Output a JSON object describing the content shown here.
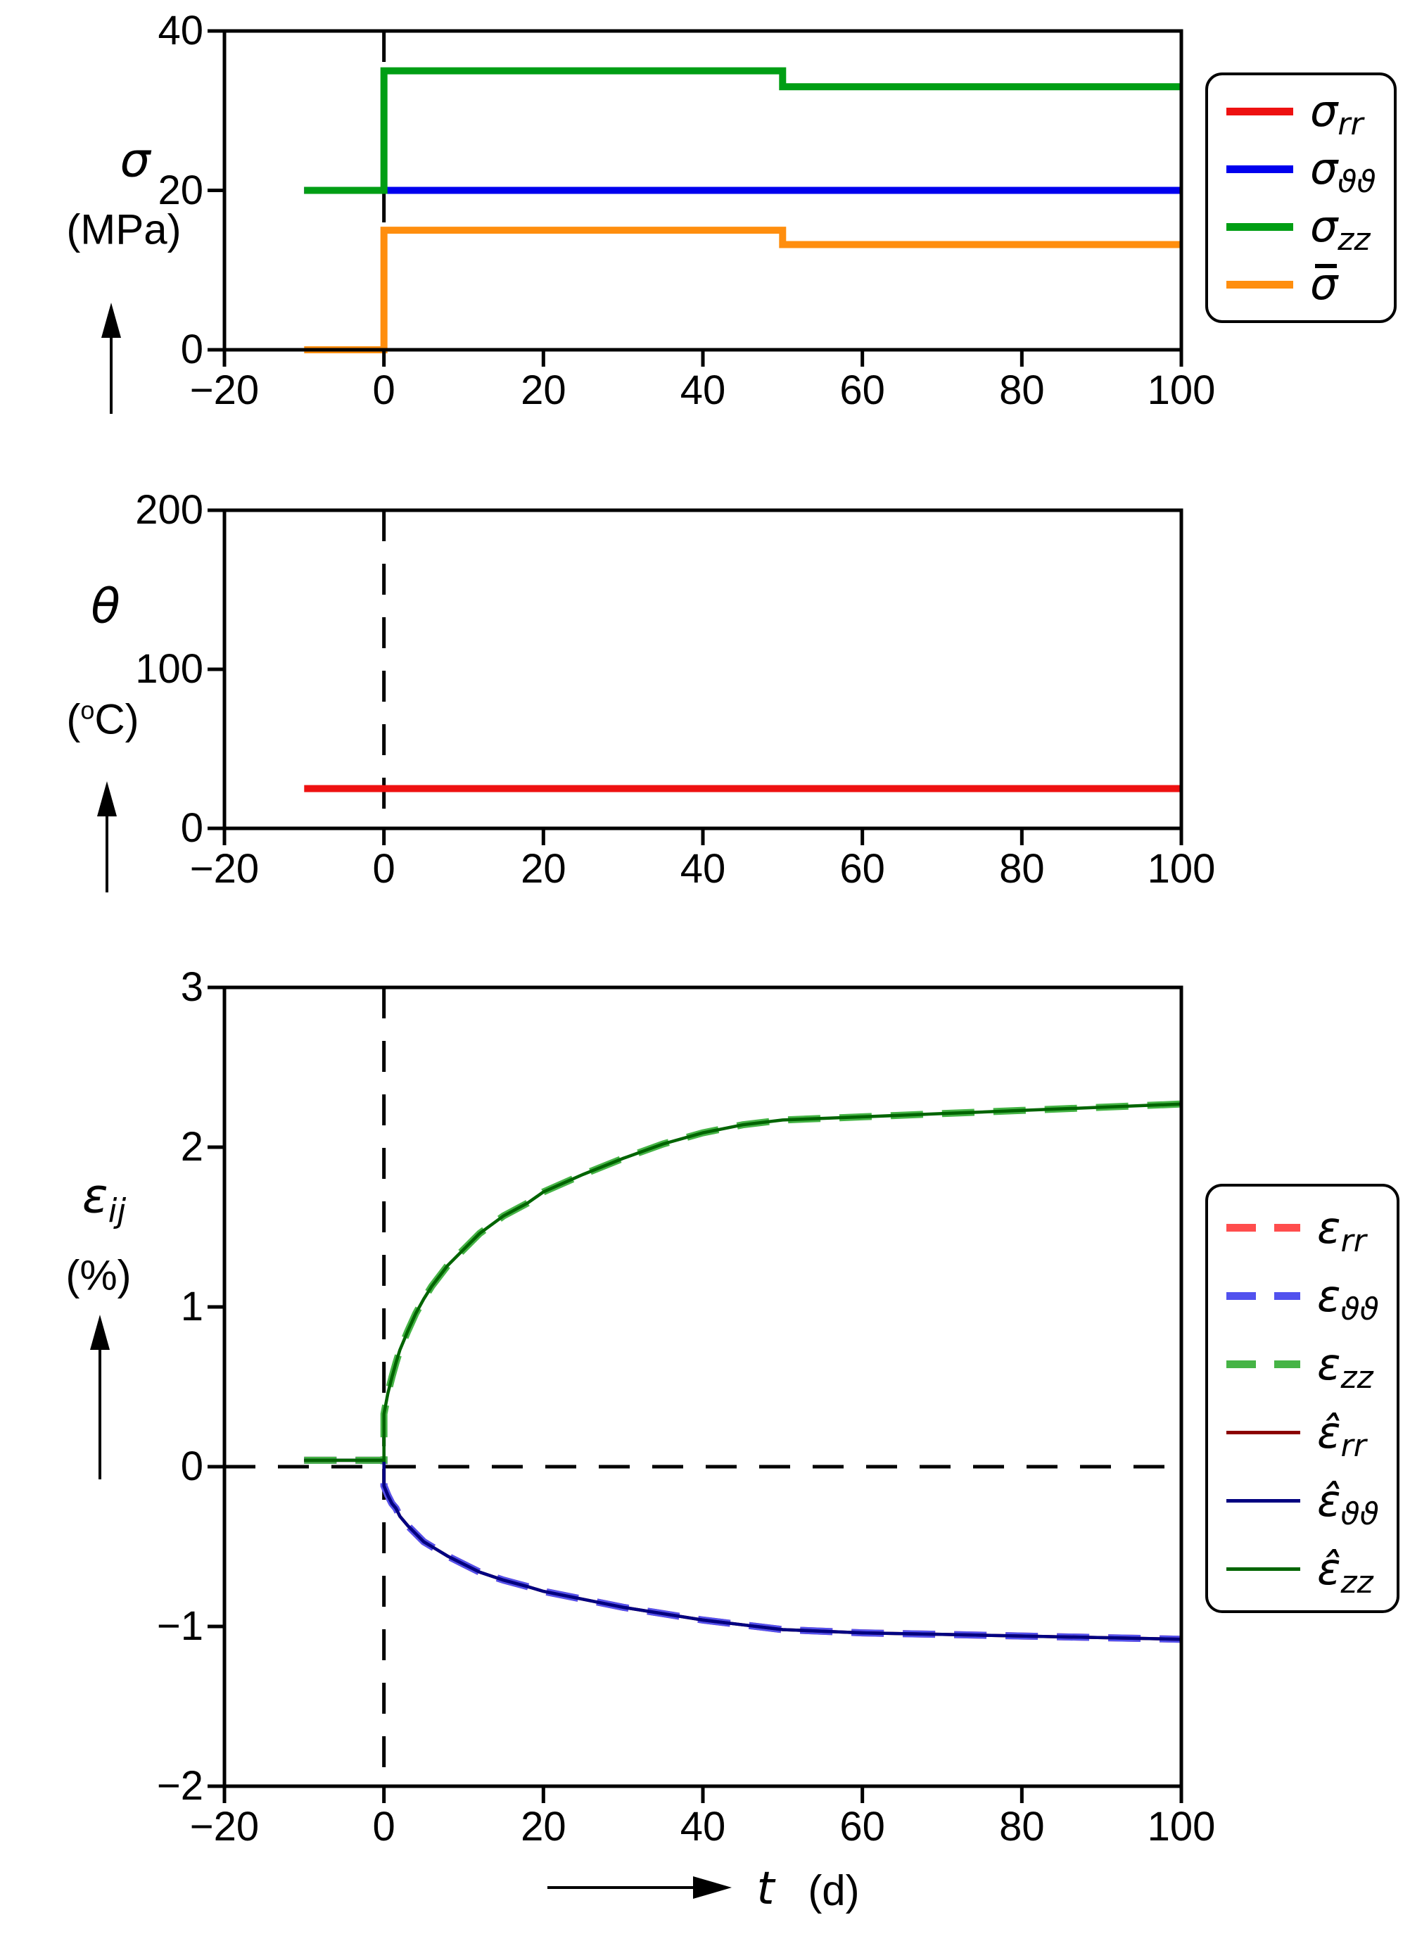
{
  "figure": {
    "background": "#ffffff"
  },
  "xaxis": {
    "ticks": [
      -20,
      0,
      20,
      40,
      60,
      80,
      100
    ],
    "label_symbol": "t",
    "label_unit": "(d)"
  },
  "panels": [
    {
      "id": "stress",
      "ylabel": {
        "symbol": "σ",
        "sub": "",
        "unit": "(MPa)"
      },
      "yticks": [
        0,
        20,
        40
      ],
      "ylim": [
        0,
        40
      ],
      "guides": {
        "vline_t": 0
      }
    },
    {
      "id": "temperature",
      "ylabel": {
        "symbol": "θ",
        "sub": "",
        "unit_pre": "(",
        "unit_sup": "o",
        "unit_post": "C)"
      },
      "yticks": [
        0,
        100,
        200
      ],
      "ylim": [
        0,
        200
      ],
      "guides": {
        "vline_t": 0
      }
    },
    {
      "id": "strain",
      "ylabel": {
        "symbol": "ε",
        "sub": "ij",
        "unit": "(%)"
      },
      "yticks": [
        -2,
        -1,
        0,
        1,
        2,
        3
      ],
      "ylim": [
        -2,
        3
      ],
      "guides": {
        "vline_t": 0,
        "hline_v": 0
      }
    }
  ],
  "legends": [
    {
      "id": "stress-legend",
      "entries": [
        {
          "symbol": "σ",
          "sub": "rr",
          "accent": "",
          "color": "#ee1111",
          "style": "solid"
        },
        {
          "symbol": "σ",
          "sub": "ϑϑ",
          "accent": "",
          "color": "#0000ee",
          "style": "solid"
        },
        {
          "symbol": "σ",
          "sub": "zz",
          "accent": "",
          "color": "#009e14",
          "style": "solid"
        },
        {
          "symbol": "σ",
          "sub": "",
          "accent": "bar",
          "color": "#ff8e0e",
          "style": "solid"
        }
      ]
    },
    {
      "id": "strain-legend",
      "entries": [
        {
          "symbol": "ε",
          "sub": "rr",
          "accent": "",
          "color": "#ff4d4d",
          "style": "dashed"
        },
        {
          "symbol": "ε",
          "sub": "ϑϑ",
          "accent": "",
          "color": "#5252ee",
          "style": "dashed"
        },
        {
          "symbol": "ε",
          "sub": "zz",
          "accent": "",
          "color": "#46b446",
          "style": "dashed"
        },
        {
          "symbol": "ε̂",
          "sub": "rr",
          "accent": "",
          "color": "#8b0000",
          "style": "solid-thin"
        },
        {
          "symbol": "ε̂",
          "sub": "ϑϑ",
          "accent": "",
          "color": "#000080",
          "style": "solid-thin"
        },
        {
          "symbol": "ε̂",
          "sub": "zz",
          "accent": "",
          "color": "#006400",
          "style": "solid-thin"
        }
      ]
    }
  ],
  "chart_data": [
    {
      "type": "line",
      "panel": "stress",
      "title": "",
      "xlabel": "t (d)",
      "ylabel": "σ (MPa)",
      "xlim": [
        -20,
        100
      ],
      "ylim": [
        0,
        40
      ],
      "grid": false,
      "legend_position": "outside-right",
      "series": [
        {
          "name": "sigma_rr",
          "color": "#ee1111",
          "style": "solid",
          "width": 10,
          "points": [
            [
              -10,
              20
            ],
            [
              0,
              20
            ],
            [
              50,
              20
            ],
            [
              100,
              20
            ]
          ]
        },
        {
          "name": "sigma_thetatheta",
          "color": "#0000ee",
          "style": "solid",
          "width": 10,
          "points": [
            [
              -10,
              20
            ],
            [
              0,
              20
            ],
            [
              50,
              20
            ],
            [
              100,
              20
            ]
          ]
        },
        {
          "name": "sigma_zz",
          "color": "#009e14",
          "style": "solid",
          "width": 10,
          "points": [
            [
              -10,
              20
            ],
            [
              0,
              20
            ],
            [
              0,
              35
            ],
            [
              50,
              35
            ],
            [
              50,
              33
            ],
            [
              100,
              33
            ]
          ]
        },
        {
          "name": "sigma_bar",
          "color": "#ff8e0e",
          "style": "solid",
          "width": 10,
          "points": [
            [
              -10,
              0
            ],
            [
              0,
              0
            ],
            [
              0,
              15
            ],
            [
              50,
              15
            ],
            [
              50,
              13.2
            ],
            [
              100,
              13.2
            ]
          ]
        }
      ]
    },
    {
      "type": "line",
      "panel": "temperature",
      "title": "",
      "xlabel": "t (d)",
      "ylabel": "θ (°C)",
      "xlim": [
        -20,
        100
      ],
      "ylim": [
        0,
        200
      ],
      "grid": false,
      "series": [
        {
          "name": "theta",
          "color": "#ee1111",
          "style": "solid",
          "width": 10,
          "points": [
            [
              -10,
              25
            ],
            [
              0,
              25
            ],
            [
              50,
              25
            ],
            [
              100,
              25
            ]
          ]
        }
      ]
    },
    {
      "type": "line",
      "panel": "strain",
      "title": "",
      "xlabel": "t (d)",
      "ylabel": "ε_ij (%)",
      "xlim": [
        -20,
        100
      ],
      "ylim": [
        -2,
        3
      ],
      "grid": false,
      "legend_position": "outside-right",
      "series": [
        {
          "name": "eps_rr",
          "color": "#ff4d4d",
          "style": "dashed",
          "width": 10,
          "points": [
            [
              -10,
              0.04
            ],
            [
              0,
              0.04
            ],
            [
              0,
              -0.12
            ],
            [
              0.5,
              -0.18
            ],
            [
              1,
              -0.23
            ],
            [
              1.5,
              -0.26
            ],
            [
              2,
              -0.31
            ],
            [
              3,
              -0.37
            ],
            [
              4,
              -0.42
            ],
            [
              5,
              -0.47
            ],
            [
              6,
              -0.5
            ],
            [
              8,
              -0.56
            ],
            [
              10,
              -0.61
            ],
            [
              12,
              -0.66
            ],
            [
              15,
              -0.71
            ],
            [
              18,
              -0.75
            ],
            [
              20,
              -0.78
            ],
            [
              25,
              -0.83
            ],
            [
              30,
              -0.88
            ],
            [
              35,
              -0.92
            ],
            [
              40,
              -0.96
            ],
            [
              45,
              -0.99
            ],
            [
              50,
              -1.02
            ],
            [
              60,
              -1.04
            ],
            [
              70,
              -1.05
            ],
            [
              80,
              -1.06
            ],
            [
              90,
              -1.07
            ],
            [
              100,
              -1.08
            ]
          ]
        },
        {
          "name": "eps_thetatheta",
          "color": "#5252ee",
          "style": "dashed",
          "width": 10,
          "points": [
            [
              -10,
              0.04
            ],
            [
              0,
              0.04
            ],
            [
              0,
              -0.12
            ],
            [
              0.5,
              -0.18
            ],
            [
              1,
              -0.23
            ],
            [
              1.5,
              -0.26
            ],
            [
              2,
              -0.31
            ],
            [
              3,
              -0.37
            ],
            [
              4,
              -0.42
            ],
            [
              5,
              -0.47
            ],
            [
              6,
              -0.5
            ],
            [
              8,
              -0.56
            ],
            [
              10,
              -0.61
            ],
            [
              12,
              -0.66
            ],
            [
              15,
              -0.71
            ],
            [
              18,
              -0.75
            ],
            [
              20,
              -0.78
            ],
            [
              25,
              -0.83
            ],
            [
              30,
              -0.88
            ],
            [
              35,
              -0.92
            ],
            [
              40,
              -0.96
            ],
            [
              45,
              -0.99
            ],
            [
              50,
              -1.02
            ],
            [
              60,
              -1.04
            ],
            [
              70,
              -1.05
            ],
            [
              80,
              -1.06
            ],
            [
              90,
              -1.07
            ],
            [
              100,
              -1.08
            ]
          ]
        },
        {
          "name": "eps_zz",
          "color": "#46b446",
          "style": "dashed",
          "width": 10,
          "points": [
            [
              -10,
              0.04
            ],
            [
              0,
              0.04
            ],
            [
              0,
              0.33
            ],
            [
              0.5,
              0.46
            ],
            [
              1,
              0.56
            ],
            [
              1.5,
              0.65
            ],
            [
              2,
              0.73
            ],
            [
              3,
              0.85
            ],
            [
              4,
              0.96
            ],
            [
              5,
              1.05
            ],
            [
              6,
              1.13
            ],
            [
              8,
              1.26
            ],
            [
              10,
              1.36
            ],
            [
              12,
              1.46
            ],
            [
              15,
              1.57
            ],
            [
              18,
              1.65
            ],
            [
              20,
              1.72
            ],
            [
              25,
              1.83
            ],
            [
              30,
              1.93
            ],
            [
              35,
              2.02
            ],
            [
              40,
              2.09
            ],
            [
              45,
              2.14
            ],
            [
              50,
              2.17
            ],
            [
              60,
              2.19
            ],
            [
              70,
              2.21
            ],
            [
              80,
              2.23
            ],
            [
              90,
              2.25
            ],
            [
              100,
              2.27
            ]
          ]
        },
        {
          "name": "eps_hat_rr",
          "color": "#8b0000",
          "style": "solid",
          "width": 4.5,
          "points": [
            [
              -10,
              0.04
            ],
            [
              0,
              0.04
            ],
            [
              0,
              -0.12
            ],
            [
              0.5,
              -0.18
            ],
            [
              1,
              -0.23
            ],
            [
              1.5,
              -0.26
            ],
            [
              2,
              -0.31
            ],
            [
              3,
              -0.37
            ],
            [
              4,
              -0.42
            ],
            [
              5,
              -0.47
            ],
            [
              6,
              -0.5
            ],
            [
              8,
              -0.56
            ],
            [
              10,
              -0.61
            ],
            [
              12,
              -0.66
            ],
            [
              15,
              -0.71
            ],
            [
              18,
              -0.75
            ],
            [
              20,
              -0.78
            ],
            [
              25,
              -0.83
            ],
            [
              30,
              -0.88
            ],
            [
              35,
              -0.92
            ],
            [
              40,
              -0.96
            ],
            [
              45,
              -0.99
            ],
            [
              50,
              -1.02
            ],
            [
              60,
              -1.04
            ],
            [
              70,
              -1.05
            ],
            [
              80,
              -1.06
            ],
            [
              90,
              -1.07
            ],
            [
              100,
              -1.08
            ]
          ]
        },
        {
          "name": "eps_hat_thetatheta",
          "color": "#000080",
          "style": "solid",
          "width": 4.5,
          "points": [
            [
              -10,
              0.04
            ],
            [
              0,
              0.04
            ],
            [
              0,
              -0.12
            ],
            [
              0.5,
              -0.18
            ],
            [
              1,
              -0.23
            ],
            [
              1.5,
              -0.26
            ],
            [
              2,
              -0.31
            ],
            [
              3,
              -0.37
            ],
            [
              4,
              -0.42
            ],
            [
              5,
              -0.47
            ],
            [
              6,
              -0.5
            ],
            [
              8,
              -0.56
            ],
            [
              10,
              -0.61
            ],
            [
              12,
              -0.66
            ],
            [
              15,
              -0.71
            ],
            [
              18,
              -0.75
            ],
            [
              20,
              -0.78
            ],
            [
              25,
              -0.83
            ],
            [
              30,
              -0.88
            ],
            [
              35,
              -0.92
            ],
            [
              40,
              -0.96
            ],
            [
              45,
              -0.99
            ],
            [
              50,
              -1.02
            ],
            [
              60,
              -1.04
            ],
            [
              70,
              -1.05
            ],
            [
              80,
              -1.06
            ],
            [
              90,
              -1.07
            ],
            [
              100,
              -1.08
            ]
          ]
        },
        {
          "name": "eps_hat_zz",
          "color": "#006400",
          "style": "solid",
          "width": 4.5,
          "points": [
            [
              -10,
              0.04
            ],
            [
              0,
              0.04
            ],
            [
              0,
              0.33
            ],
            [
              0.5,
              0.46
            ],
            [
              1,
              0.56
            ],
            [
              1.5,
              0.65
            ],
            [
              2,
              0.73
            ],
            [
              3,
              0.85
            ],
            [
              4,
              0.96
            ],
            [
              5,
              1.05
            ],
            [
              6,
              1.13
            ],
            [
              8,
              1.26
            ],
            [
              10,
              1.36
            ],
            [
              12,
              1.46
            ],
            [
              15,
              1.57
            ],
            [
              18,
              1.65
            ],
            [
              20,
              1.72
            ],
            [
              25,
              1.83
            ],
            [
              30,
              1.93
            ],
            [
              35,
              2.02
            ],
            [
              40,
              2.09
            ],
            [
              45,
              2.14
            ],
            [
              50,
              2.17
            ],
            [
              60,
              2.19
            ],
            [
              70,
              2.21
            ],
            [
              80,
              2.23
            ],
            [
              90,
              2.25
            ],
            [
              100,
              2.27
            ]
          ]
        }
      ]
    }
  ]
}
